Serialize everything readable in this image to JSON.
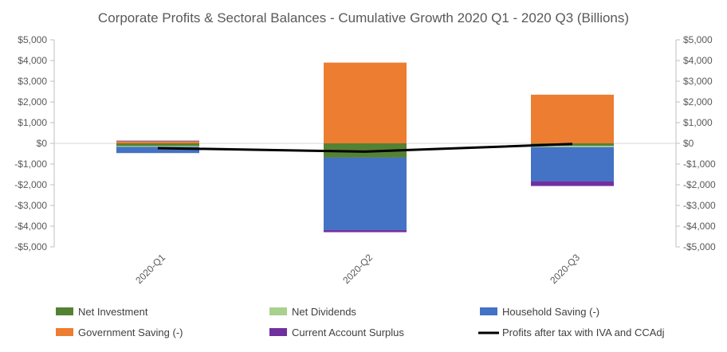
{
  "chart_data": {
    "type": "bar",
    "title": "Corporate Profits & Sectoral Balances - Cumulative Growth 2020 Q1 - 2020 Q3 (Billions)",
    "categories": [
      "2020-Q1",
      "2020-Q2",
      "2020-Q3"
    ],
    "ylim": [
      -5000,
      5000
    ],
    "y_ticks": [
      "$5,000",
      "$4,000",
      "$3,000",
      "$2,000",
      "$1,000",
      "$0",
      "-$1,000",
      "-$2,000",
      "-$3,000",
      "-$4,000",
      "-$5,000"
    ],
    "stacked": true,
    "grid": false,
    "secondary_axis": true,
    "legend_position": "bottom",
    "series": [
      {
        "name": "Net Investment",
        "color": "#548235",
        "values": [
          -130,
          -690,
          -120
        ]
      },
      {
        "name": "Net Dividends",
        "color": "#a9d18e",
        "values": [
          -40,
          0,
          -60
        ]
      },
      {
        "name": "Household Saving (-)",
        "color": "#4472c4",
        "values": [
          -300,
          -3500,
          -1650
        ]
      },
      {
        "name": "Government Saving (-)",
        "color": "#ed7d31",
        "values": [
          100,
          3900,
          2350
        ]
      },
      {
        "name": "Current Account Surplus",
        "color": "#7030a0",
        "values": [
          30,
          -100,
          -230
        ]
      }
    ],
    "line_series": {
      "name": "Profits after tax with IVA and CCAdj",
      "color": "#000000",
      "values": [
        -230,
        -400,
        -30
      ]
    }
  }
}
